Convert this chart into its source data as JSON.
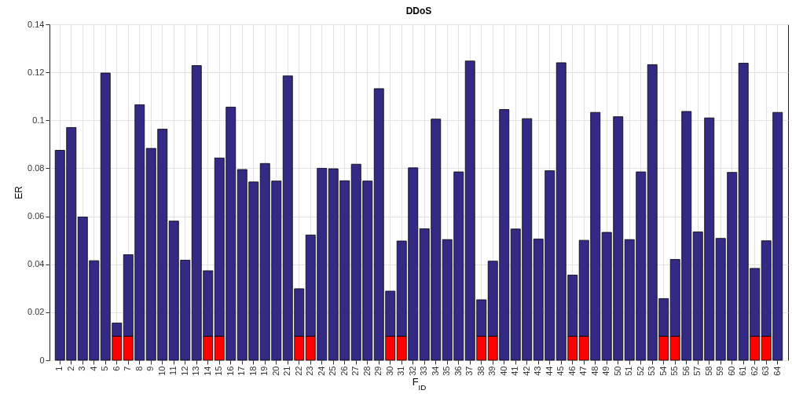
{
  "chart_data": {
    "type": "bar",
    "title": "DDoS",
    "xlabel": "F$_{ID}$",
    "ylabel": "ER",
    "categories": [
      "1",
      "2",
      "3",
      "4",
      "5",
      "6",
      "7",
      "8",
      "9",
      "10",
      "11",
      "12",
      "13",
      "14",
      "15",
      "16",
      "17",
      "18",
      "19",
      "20",
      "21",
      "22",
      "23",
      "24",
      "25",
      "26",
      "27",
      "28",
      "29",
      "30",
      "31",
      "32",
      "33",
      "34",
      "35",
      "36",
      "37",
      "38",
      "39",
      "40",
      "41",
      "42",
      "43",
      "44",
      "45",
      "46",
      "47",
      "48",
      "49",
      "50",
      "51",
      "52",
      "53",
      "54",
      "55",
      "56",
      "57",
      "58",
      "59",
      "60",
      "61",
      "62",
      "63",
      "64"
    ],
    "stacked": true,
    "series": [
      {
        "color": "#ff0000",
        "values": [
          null,
          null,
          null,
          null,
          null,
          0.01,
          0.01,
          null,
          null,
          null,
          null,
          null,
          null,
          0.01,
          0.01,
          null,
          null,
          null,
          null,
          null,
          null,
          0.01,
          0.01,
          null,
          null,
          null,
          null,
          null,
          null,
          0.01,
          0.01,
          null,
          null,
          null,
          null,
          null,
          null,
          0.01,
          0.01,
          null,
          null,
          null,
          null,
          null,
          null,
          0.01,
          0.01,
          null,
          null,
          null,
          null,
          null,
          null,
          0.01,
          0.01,
          null,
          null,
          null,
          null,
          null,
          null,
          0.01,
          0.01,
          null
        ]
      },
      {
        "color": "#332a85",
        "values": [
          0.0875,
          0.097,
          0.0597,
          0.0415,
          0.1197,
          0.0055,
          0.034,
          0.1065,
          0.0883,
          0.0963,
          0.058,
          0.0417,
          0.1228,
          0.0273,
          0.0743,
          0.1055,
          0.0795,
          0.0743,
          0.082,
          0.0747,
          0.1185,
          0.0198,
          0.0422,
          0.08,
          0.0798,
          0.0748,
          0.0817,
          0.0747,
          0.1132,
          0.0188,
          0.0397,
          0.0802,
          0.0548,
          0.1005,
          0.0503,
          0.0785,
          0.1247,
          0.0152,
          0.0313,
          0.1045,
          0.0547,
          0.1007,
          0.0505,
          0.079,
          0.124,
          0.0255,
          0.04,
          0.1033,
          0.0533,
          0.1015,
          0.0503,
          0.0785,
          0.1232,
          0.0157,
          0.032,
          0.1037,
          0.0535,
          0.101,
          0.0508,
          0.0783,
          0.1238,
          0.0283,
          0.0398,
          0.1033
        ]
      }
    ],
    "ylim": [
      0,
      0.14
    ],
    "yticks": [
      0,
      0.02,
      0.04,
      0.06,
      0.08,
      0.1,
      0.12,
      0.14
    ],
    "grid": true,
    "legend": false
  }
}
